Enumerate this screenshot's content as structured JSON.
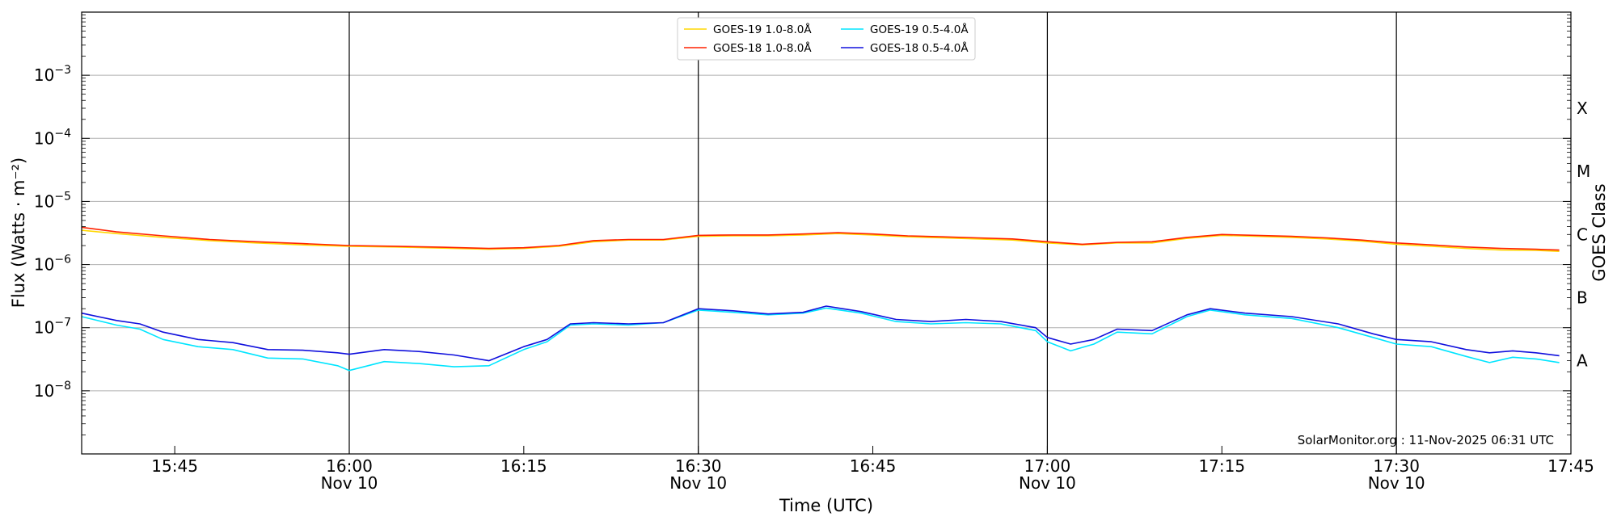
{
  "chart_data": {
    "type": "line",
    "title": "",
    "xlabel": "Time (UTC)",
    "ylabel": "Flux (Watts · m⁻²)",
    "y2label": "GOES Class",
    "yscale": "log",
    "ylim": [
      1e-09,
      0.01
    ],
    "xlim": [
      "15:37",
      "17:45"
    ],
    "grid": "horizontal",
    "legend": "top-center",
    "credit": "SolarMonitor.org : 11-Nov-2025 06:31 UTC",
    "ytick_labels": [
      {
        "value": 1e-08,
        "base": "10",
        "exp": "−8"
      },
      {
        "value": 1e-07,
        "base": "10",
        "exp": "−7"
      },
      {
        "value": 1e-06,
        "base": "10",
        "exp": "−6"
      },
      {
        "value": 1e-05,
        "base": "10",
        "exp": "−5"
      },
      {
        "value": 0.0001,
        "base": "10",
        "exp": "−4"
      },
      {
        "value": 0.001,
        "base": "10",
        "exp": "−3"
      }
    ],
    "xtick_labels": [
      {
        "time": "15:45",
        "label": "15:45",
        "date": ""
      },
      {
        "time": "16:00",
        "label": "16:00",
        "date": "Nov 10"
      },
      {
        "time": "16:15",
        "label": "16:15",
        "date": ""
      },
      {
        "time": "16:30",
        "label": "16:30",
        "date": "Nov 10"
      },
      {
        "time": "16:45",
        "label": "16:45",
        "date": ""
      },
      {
        "time": "17:00",
        "label": "17:00",
        "date": "Nov 10"
      },
      {
        "time": "17:15",
        "label": "17:15",
        "date": ""
      },
      {
        "time": "17:30",
        "label": "17:30",
        "date": "Nov 10"
      },
      {
        "time": "17:45",
        "label": "17:45",
        "date": ""
      }
    ],
    "vlines": [
      "16:00",
      "16:30",
      "17:00",
      "17:30"
    ],
    "class_labels": [
      {
        "label": "A",
        "value": 3e-08
      },
      {
        "label": "B",
        "value": 3e-07
      },
      {
        "label": "C",
        "value": 3e-06
      },
      {
        "label": "M",
        "value": 3e-05
      },
      {
        "label": "X",
        "value": 0.0003
      }
    ],
    "series": [
      {
        "name": "GOES-19 1.0-8.0Å",
        "color": "#FFD700",
        "x": [
          "15:37",
          "15:40",
          "15:44",
          "15:48",
          "15:52",
          "15:56",
          "16:00",
          "16:04",
          "16:08",
          "16:12",
          "16:15",
          "16:18",
          "16:21",
          "16:24",
          "16:27",
          "16:30",
          "16:33",
          "16:36",
          "16:39",
          "16:42",
          "16:45",
          "16:48",
          "16:51",
          "16:54",
          "16:57",
          "17:00",
          "17:03",
          "17:06",
          "17:09",
          "17:12",
          "17:15",
          "17:18",
          "17:21",
          "17:24",
          "17:27",
          "17:30",
          "17:33",
          "17:36",
          "17:39",
          "17:42",
          "17:44"
        ],
        "values": [
          3.5e-06,
          3.1e-06,
          2.7e-06,
          2.4e-06,
          2.2e-06,
          2.05e-06,
          1.95e-06,
          1.9e-06,
          1.82e-06,
          1.75e-06,
          1.8e-06,
          1.95e-06,
          2.3e-06,
          2.45e-06,
          2.45e-06,
          2.8e-06,
          2.85e-06,
          2.85e-06,
          2.95e-06,
          3.1e-06,
          2.95e-06,
          2.75e-06,
          2.65e-06,
          2.55e-06,
          2.45e-06,
          2.2e-06,
          2.05e-06,
          2.2e-06,
          2.2e-06,
          2.6e-06,
          2.9e-06,
          2.8e-06,
          2.7e-06,
          2.55e-06,
          2.35e-06,
          2.1e-06,
          1.95e-06,
          1.8e-06,
          1.7e-06,
          1.68e-06,
          1.62e-06
        ]
      },
      {
        "name": "GOES-18 1.0-8.0Å",
        "color": "#FF2200",
        "x": [
          "15:37",
          "15:40",
          "15:44",
          "15:48",
          "15:52",
          "15:56",
          "16:00",
          "16:04",
          "16:08",
          "16:12",
          "16:15",
          "16:18",
          "16:21",
          "16:24",
          "16:27",
          "16:30",
          "16:33",
          "16:36",
          "16:39",
          "16:42",
          "16:45",
          "16:48",
          "16:51",
          "16:54",
          "16:57",
          "17:00",
          "17:03",
          "17:06",
          "17:09",
          "17:12",
          "17:15",
          "17:18",
          "17:21",
          "17:24",
          "17:27",
          "17:30",
          "17:33",
          "17:36",
          "17:39",
          "17:42",
          "17:44"
        ],
        "values": [
          3.9e-06,
          3.3e-06,
          2.85e-06,
          2.5e-06,
          2.3e-06,
          2.15e-06,
          2e-06,
          1.95e-06,
          1.88e-06,
          1.8e-06,
          1.85e-06,
          2e-06,
          2.4e-06,
          2.5e-06,
          2.5e-06,
          2.9e-06,
          2.95e-06,
          2.95e-06,
          3.05e-06,
          3.2e-06,
          3.05e-06,
          2.85e-06,
          2.75e-06,
          2.65e-06,
          2.55e-06,
          2.3e-06,
          2.1e-06,
          2.25e-06,
          2.3e-06,
          2.7e-06,
          3e-06,
          2.9e-06,
          2.8e-06,
          2.65e-06,
          2.45e-06,
          2.2e-06,
          2.05e-06,
          1.9e-06,
          1.8e-06,
          1.75e-06,
          1.7e-06
        ]
      },
      {
        "name": "GOES-19 0.5-4.0Å",
        "color": "#00E5FF",
        "x": [
          "15:37",
          "15:40",
          "15:42",
          "15:44",
          "15:47",
          "15:50",
          "15:53",
          "15:56",
          "15:59",
          "16:00",
          "16:03",
          "16:06",
          "16:09",
          "16:12",
          "16:15",
          "16:17",
          "16:19",
          "16:21",
          "16:24",
          "16:27",
          "16:30",
          "16:33",
          "16:36",
          "16:39",
          "16:41",
          "16:44",
          "16:47",
          "16:50",
          "16:53",
          "16:56",
          "16:59",
          "17:00",
          "17:02",
          "17:04",
          "17:06",
          "17:09",
          "17:12",
          "17:14",
          "17:17",
          "17:21",
          "17:25",
          "17:28",
          "17:30",
          "17:33",
          "17:36",
          "17:38",
          "17:40",
          "17:42",
          "17:44"
        ],
        "values": [
          1.5e-07,
          1.1e-07,
          9.5e-08,
          6.5e-08,
          5e-08,
          4.5e-08,
          3.3e-08,
          3.2e-08,
          2.5e-08,
          2.1e-08,
          2.9e-08,
          2.7e-08,
          2.4e-08,
          2.5e-08,
          4.5e-08,
          6e-08,
          1.1e-07,
          1.15e-07,
          1.1e-07,
          1.2e-07,
          1.9e-07,
          1.75e-07,
          1.6e-07,
          1.7e-07,
          2.05e-07,
          1.7e-07,
          1.25e-07,
          1.15e-07,
          1.2e-07,
          1.15e-07,
          9e-08,
          6e-08,
          4.3e-08,
          5.5e-08,
          8.5e-08,
          8e-08,
          1.5e-07,
          1.9e-07,
          1.6e-07,
          1.4e-07,
          1e-07,
          7e-08,
          5.5e-08,
          5e-08,
          3.5e-08,
          2.8e-08,
          3.4e-08,
          3.2e-08,
          2.8e-08
        ]
      },
      {
        "name": "GOES-18 0.5-4.0Å",
        "color": "#1010DD",
        "x": [
          "15:37",
          "15:40",
          "15:42",
          "15:44",
          "15:47",
          "15:50",
          "15:53",
          "15:56",
          "15:59",
          "16:00",
          "16:03",
          "16:06",
          "16:09",
          "16:12",
          "16:15",
          "16:17",
          "16:19",
          "16:21",
          "16:24",
          "16:27",
          "16:30",
          "16:33",
          "16:36",
          "16:39",
          "16:41",
          "16:44",
          "16:47",
          "16:50",
          "16:53",
          "16:56",
          "16:59",
          "17:00",
          "17:02",
          "17:04",
          "17:06",
          "17:09",
          "17:12",
          "17:14",
          "17:17",
          "17:21",
          "17:25",
          "17:28",
          "17:30",
          "17:33",
          "17:36",
          "17:38",
          "17:40",
          "17:42",
          "17:44"
        ],
        "values": [
          1.7e-07,
          1.3e-07,
          1.15e-07,
          8.5e-08,
          6.5e-08,
          5.8e-08,
          4.5e-08,
          4.4e-08,
          4e-08,
          3.8e-08,
          4.5e-08,
          4.2e-08,
          3.7e-08,
          3e-08,
          5e-08,
          6.5e-08,
          1.15e-07,
          1.2e-07,
          1.15e-07,
          1.2e-07,
          2e-07,
          1.85e-07,
          1.65e-07,
          1.75e-07,
          2.2e-07,
          1.8e-07,
          1.35e-07,
          1.25e-07,
          1.35e-07,
          1.25e-07,
          1e-07,
          7e-08,
          5.5e-08,
          6.5e-08,
          9.5e-08,
          9e-08,
          1.6e-07,
          2e-07,
          1.7e-07,
          1.5e-07,
          1.15e-07,
          8e-08,
          6.5e-08,
          6e-08,
          4.5e-08,
          4e-08,
          4.3e-08,
          4e-08,
          3.6e-08
        ]
      }
    ]
  }
}
